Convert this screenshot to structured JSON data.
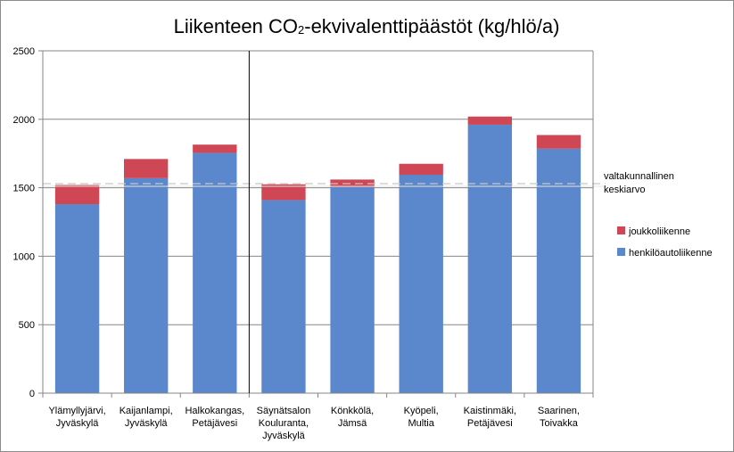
{
  "chart_data": {
    "type": "bar",
    "stacked": true,
    "title": {
      "prefix": "Liikenteen CO",
      "subscript": "2",
      "suffix": "-ekvivalenttipäästöt (kg/hlö/a)"
    },
    "categories": [
      [
        "Ylämyllyjärvi,",
        "Jyväskylä"
      ],
      [
        "Kaijanlampi,",
        "Jyväskylä"
      ],
      [
        "Halkokangas,",
        "Petäjävesi"
      ],
      [
        "Säynätsalon",
        "Kouluranta,",
        "Jyväskylä"
      ],
      [
        "Könkkölä,",
        "Jämsä"
      ],
      [
        "Kyöpeli,",
        "Multia"
      ],
      [
        "Kaistinmäki,",
        "Petäjävesi"
      ],
      [
        "Saarinen,",
        "Toivakka"
      ]
    ],
    "series": [
      {
        "name": "henkilöautoliikenne",
        "color": "#5b87cc",
        "values": [
          1380,
          1570,
          1755,
          1410,
          1505,
          1595,
          1960,
          1785
        ]
      },
      {
        "name": "joukkoliikenne",
        "color": "#cf4655",
        "values": [
          140,
          140,
          60,
          115,
          55,
          80,
          60,
          100
        ]
      }
    ],
    "ylim": [
      0,
      2500
    ],
    "yticks": [
      0,
      500,
      1000,
      1500,
      2000,
      2500
    ],
    "grid": true,
    "separator_after_category": 2,
    "reference_line": {
      "value": 1530,
      "label": [
        "valtakunnallinen",
        "keskiarvo"
      ],
      "color": "#c8c8c8"
    },
    "legend_position": "right"
  }
}
